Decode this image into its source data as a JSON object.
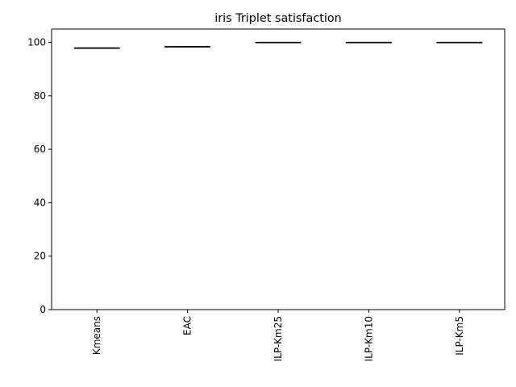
{
  "chart_data": {
    "type": "box",
    "title": "iris Triplet satisfaction",
    "xlabel": "",
    "ylabel": "",
    "categories": [
      "Kmeans",
      "EAC",
      "ILP-Km25",
      "ILP-Km10",
      "ILP-Km5"
    ],
    "series": [
      {
        "values": [
          {
            "min": 97.9,
            "q1": 97.9,
            "median": 97.9,
            "q3": 97.9,
            "max": 97.9
          },
          {
            "min": 98.4,
            "q1": 98.4,
            "median": 98.4,
            "q3": 98.4,
            "max": 98.4
          },
          {
            "min": 100.0,
            "q1": 100.0,
            "median": 100.0,
            "q3": 100.0,
            "max": 100.0
          },
          {
            "min": 100.0,
            "q1": 100.0,
            "median": 100.0,
            "q3": 100.0,
            "max": 100.0
          },
          {
            "min": 100.0,
            "q1": 100.0,
            "median": 100.0,
            "q3": 100.0,
            "max": 100.0
          }
        ]
      }
    ],
    "ylim": [
      0,
      105
    ],
    "yticks": [
      0,
      20,
      40,
      60,
      80,
      100
    ],
    "grid": false,
    "xtick_rotation": "vertical",
    "colors": {
      "box": "#000000",
      "median": "#000000",
      "axes": "#000000"
    }
  }
}
